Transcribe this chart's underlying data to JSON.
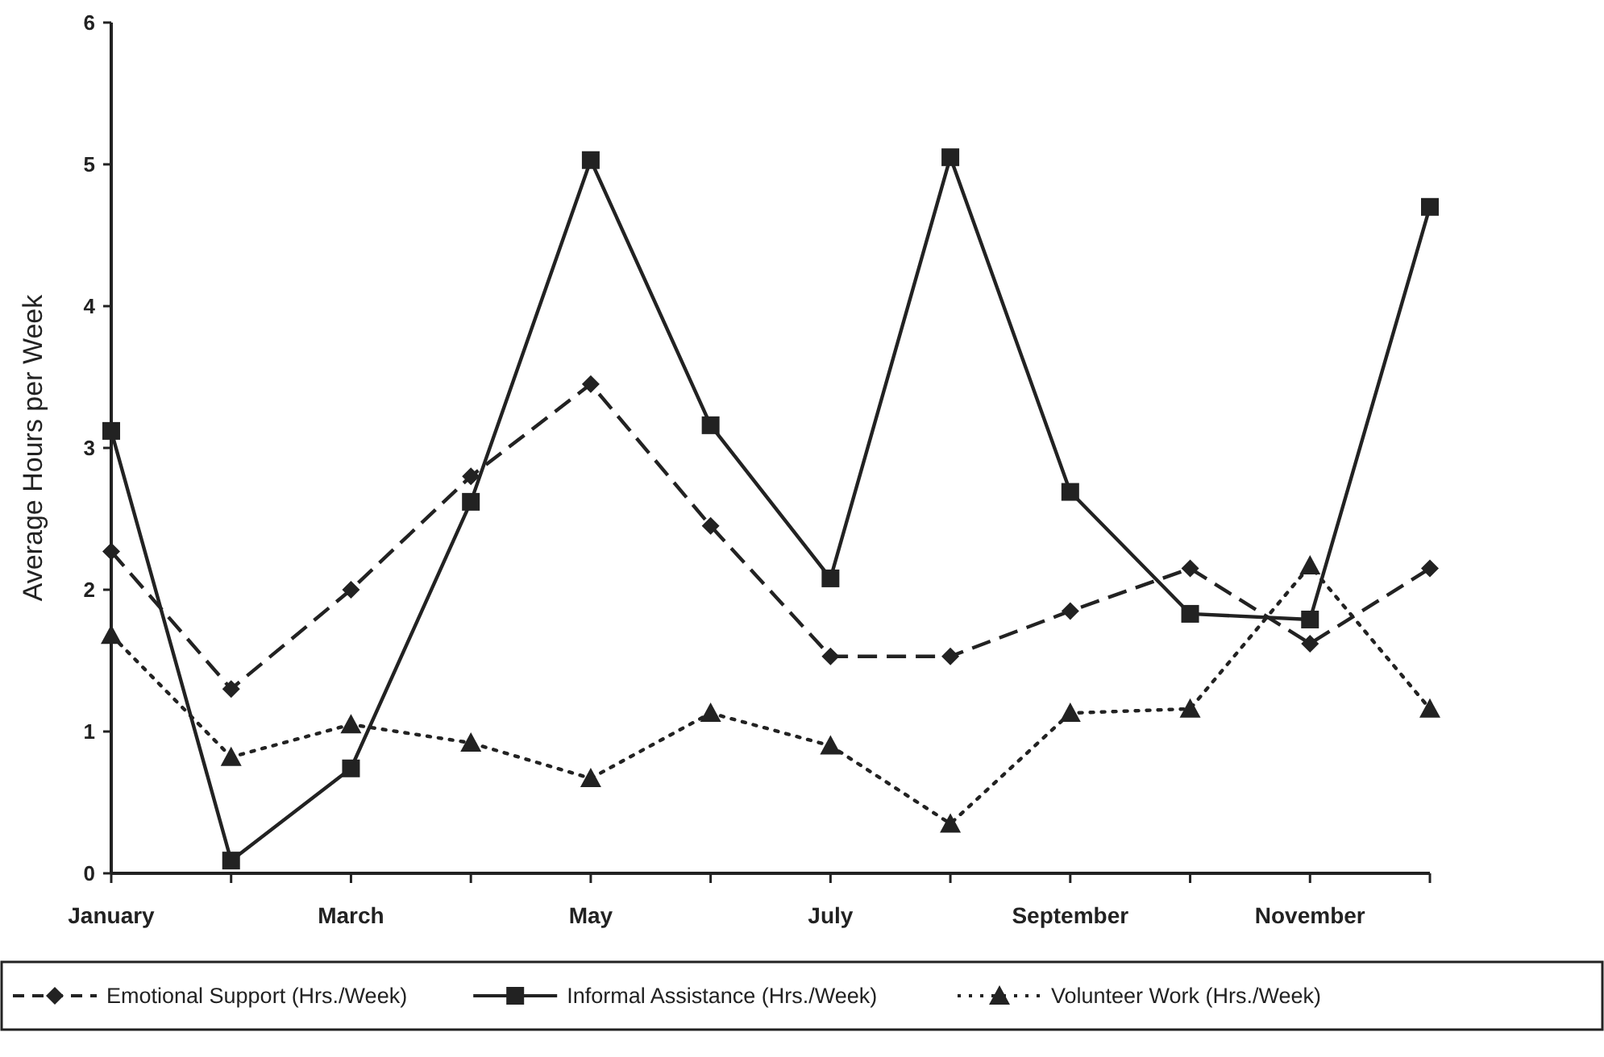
{
  "chart_data": {
    "type": "line",
    "ylabel": "Average Hours per Week",
    "categories": [
      "January",
      null,
      "March",
      null,
      "May",
      null,
      "July",
      null,
      "September",
      null,
      "November",
      null
    ],
    "ylim": [
      0,
      6
    ],
    "yticks": [
      0,
      1,
      2,
      3,
      4,
      5,
      6
    ],
    "grid": false,
    "legend": "bottom",
    "series": [
      {
        "name": "Emotional Support (Hrs./Week)",
        "color": "#222222",
        "marker": "diamond",
        "line_style": "dashed",
        "values": [
          2.27,
          1.3,
          2.0,
          2.8,
          3.45,
          2.45,
          1.53,
          1.53,
          1.85,
          2.15,
          1.62,
          2.15
        ]
      },
      {
        "name": "Informal Assistance (Hrs./Week)",
        "color": "#222222",
        "marker": "square",
        "line_style": "solid",
        "values": [
          3.12,
          0.09,
          0.74,
          2.62,
          5.03,
          3.16,
          2.08,
          5.05,
          2.69,
          1.83,
          1.79,
          4.7
        ]
      },
      {
        "name": "Volunteer Work  (Hrs./Week)",
        "color": "#222222",
        "marker": "triangle",
        "line_style": "dotted",
        "values": [
          1.68,
          0.82,
          1.05,
          0.92,
          0.67,
          1.13,
          0.9,
          0.35,
          1.13,
          1.16,
          2.17,
          1.16
        ]
      }
    ]
  }
}
